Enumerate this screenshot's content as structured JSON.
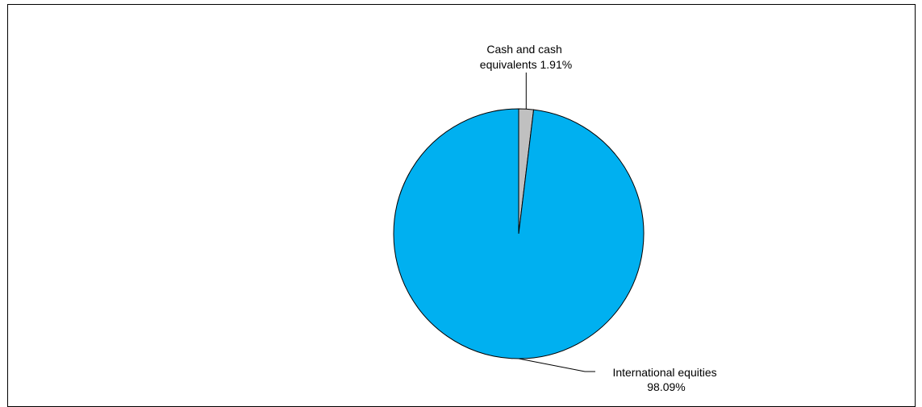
{
  "chart_data": {
    "type": "pie",
    "categories": [
      "Cash and cash equivalents",
      "International equities"
    ],
    "values": [
      1.91,
      98.09
    ],
    "unit": "%",
    "colors": [
      "#c0c0c0",
      "#00b0f0"
    ],
    "start_angle_deg": 0,
    "direction": "clockwise",
    "legend": "none",
    "labels": [
      {
        "lines": [
          "Cash and cash",
          "equivalents 1.91%"
        ]
      },
      {
        "lines": [
          "International equities",
          "98.09%"
        ]
      }
    ]
  }
}
